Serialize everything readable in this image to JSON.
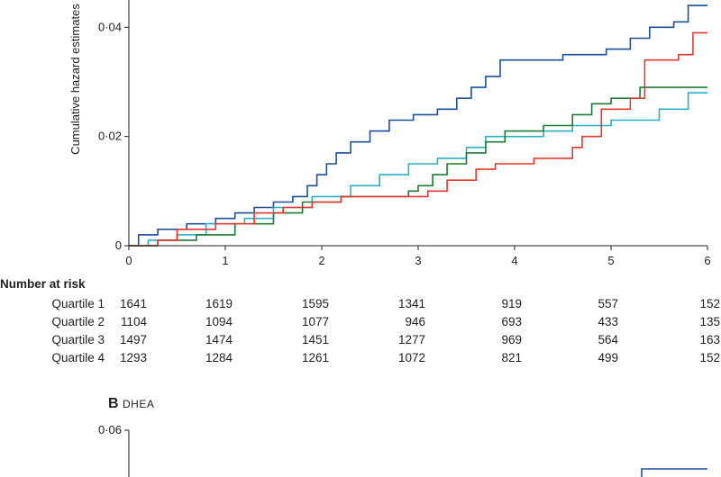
{
  "chart_data": [
    {
      "type": "line",
      "step": true,
      "ylabel": "Cumulative hazard estimates",
      "xlim": [
        0,
        6
      ],
      "ylim": [
        0,
        0.045
      ],
      "x_ticks": [
        {
          "value": 0,
          "label": "0"
        },
        {
          "value": 1,
          "label": "1"
        },
        {
          "value": 2,
          "label": "2"
        },
        {
          "value": 3,
          "label": "3"
        },
        {
          "value": 4,
          "label": "4"
        },
        {
          "value": 5,
          "label": "5"
        },
        {
          "value": 6,
          "label": "6"
        }
      ],
      "y_ticks": [
        {
          "value": 0,
          "label": "0"
        },
        {
          "value": 0.02,
          "label": "0·02"
        },
        {
          "value": 0.04,
          "label": "0·04"
        }
      ],
      "series": [
        {
          "color": "#1a4f9c",
          "points": [
            [
              0,
              0
            ],
            [
              0.1,
              0.002
            ],
            [
              0.3,
              0.003
            ],
            [
              0.6,
              0.004
            ],
            [
              0.9,
              0.005
            ],
            [
              1.1,
              0.006
            ],
            [
              1.3,
              0.007
            ],
            [
              1.5,
              0.008
            ],
            [
              1.7,
              0.009
            ],
            [
              1.85,
              0.011
            ],
            [
              1.95,
              0.013
            ],
            [
              2.05,
              0.015
            ],
            [
              2.15,
              0.017
            ],
            [
              2.3,
              0.019
            ],
            [
              2.5,
              0.021
            ],
            [
              2.7,
              0.023
            ],
            [
              2.95,
              0.024
            ],
            [
              3.2,
              0.025
            ],
            [
              3.4,
              0.027
            ],
            [
              3.55,
              0.029
            ],
            [
              3.7,
              0.031
            ],
            [
              3.85,
              0.034
            ],
            [
              4.3,
              0.034
            ],
            [
              4.5,
              0.035
            ],
            [
              4.95,
              0.036
            ],
            [
              5.2,
              0.038
            ],
            [
              5.4,
              0.04
            ],
            [
              5.65,
              0.041
            ],
            [
              5.8,
              0.044
            ],
            [
              6.0,
              0.044
            ]
          ]
        },
        {
          "color": "#2ab0c5",
          "points": [
            [
              0,
              0
            ],
            [
              0.2,
              0.001
            ],
            [
              0.5,
              0.002
            ],
            [
              0.8,
              0.004
            ],
            [
              1.2,
              0.005
            ],
            [
              1.5,
              0.007
            ],
            [
              1.9,
              0.009
            ],
            [
              2.3,
              0.011
            ],
            [
              2.6,
              0.013
            ],
            [
              2.9,
              0.015
            ],
            [
              3.2,
              0.016
            ],
            [
              3.5,
              0.018
            ],
            [
              3.7,
              0.02
            ],
            [
              4.1,
              0.02
            ],
            [
              4.3,
              0.021
            ],
            [
              4.6,
              0.022
            ],
            [
              5.0,
              0.023
            ],
            [
              5.5,
              0.025
            ],
            [
              5.8,
              0.028
            ],
            [
              6.0,
              0.028
            ]
          ]
        },
        {
          "color": "#1e7a34",
          "points": [
            [
              0,
              0
            ],
            [
              0.3,
              0.001
            ],
            [
              0.7,
              0.002
            ],
            [
              1.1,
              0.004
            ],
            [
              1.5,
              0.006
            ],
            [
              1.8,
              0.008
            ],
            [
              2.2,
              0.009
            ],
            [
              2.7,
              0.009
            ],
            [
              2.9,
              0.01
            ],
            [
              3.0,
              0.011
            ],
            [
              3.15,
              0.013
            ],
            [
              3.3,
              0.015
            ],
            [
              3.5,
              0.017
            ],
            [
              3.7,
              0.019
            ],
            [
              3.9,
              0.021
            ],
            [
              4.3,
              0.022
            ],
            [
              4.6,
              0.024
            ],
            [
              4.8,
              0.026
            ],
            [
              5.0,
              0.027
            ],
            [
              5.3,
              0.029
            ],
            [
              6.0,
              0.029
            ]
          ]
        },
        {
          "color": "#e03a2f",
          "points": [
            [
              0,
              0
            ],
            [
              0.3,
              0.001
            ],
            [
              0.5,
              0.003
            ],
            [
              0.9,
              0.004
            ],
            [
              1.3,
              0.006
            ],
            [
              1.6,
              0.007
            ],
            [
              1.9,
              0.008
            ],
            [
              2.2,
              0.009
            ],
            [
              2.6,
              0.009
            ],
            [
              2.9,
              0.009
            ],
            [
              3.1,
              0.01
            ],
            [
              3.3,
              0.012
            ],
            [
              3.6,
              0.014
            ],
            [
              3.8,
              0.015
            ],
            [
              4.2,
              0.016
            ],
            [
              4.6,
              0.018
            ],
            [
              4.7,
              0.02
            ],
            [
              4.9,
              0.025
            ],
            [
              5.2,
              0.027
            ],
            [
              5.35,
              0.034
            ],
            [
              5.7,
              0.035
            ],
            [
              5.85,
              0.039
            ],
            [
              6.0,
              0.039
            ]
          ]
        }
      ]
    },
    {
      "type": "line",
      "title_letter": "B",
      "title": "DHEA",
      "y_ticks": [
        {
          "value": 0.06,
          "label": "0·06"
        }
      ]
    }
  ],
  "risk_table": {
    "header": "Number at risk",
    "rows": [
      {
        "label": "Quartile 1",
        "values": [
          "1641",
          "1619",
          "1595",
          "1341",
          "919",
          "557",
          "152"
        ]
      },
      {
        "label": "Quartile 2",
        "values": [
          "1104",
          "1094",
          "1077",
          "946",
          "693",
          "433",
          "135"
        ]
      },
      {
        "label": "Quartile 3",
        "values": [
          "1497",
          "1474",
          "1451",
          "1277",
          "969",
          "564",
          "163"
        ]
      },
      {
        "label": "Quartile 4",
        "values": [
          "1293",
          "1284",
          "1261",
          "1072",
          "821",
          "499",
          "152"
        ]
      }
    ]
  }
}
